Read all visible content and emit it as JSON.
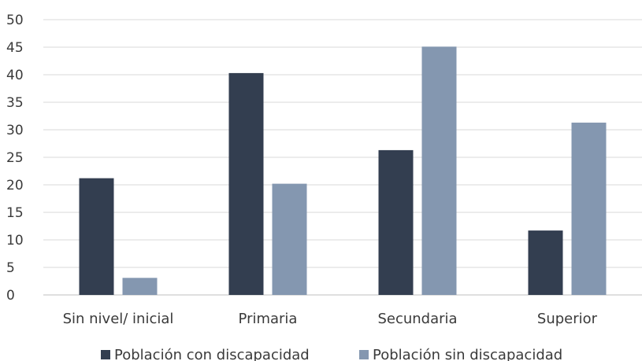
{
  "chart_data": {
    "type": "bar",
    "title": "",
    "xlabel": "",
    "ylabel": "",
    "ylim": [
      0,
      50
    ],
    "yticks": [
      0,
      5,
      10,
      15,
      20,
      25,
      30,
      35,
      40,
      45,
      50
    ],
    "grid": true,
    "legend_position": "bottom",
    "categories": [
      "Sin nivel/ inicial",
      "Primaria",
      "Secundaria",
      "Superior"
    ],
    "series": [
      {
        "name": "Población con discapacidad",
        "color": "#333e50",
        "values": [
          21.2,
          40.3,
          26.3,
          11.7
        ]
      },
      {
        "name": "Población sin discapacidad",
        "color": "#8497b0",
        "values": [
          3.1,
          20.2,
          45.1,
          31.3
        ]
      }
    ]
  }
}
